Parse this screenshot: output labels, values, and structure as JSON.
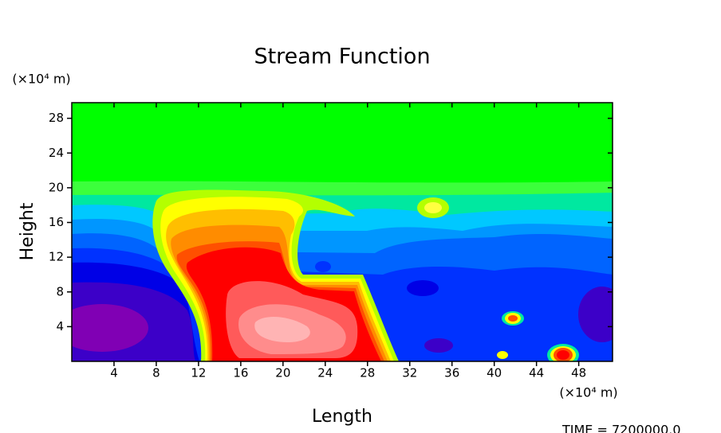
{
  "chart_data": {
    "type": "contour",
    "title": "Stream Function",
    "x_label": "Length",
    "y_label": "Height",
    "x_unit": "(×10⁴ m)",
    "y_unit": "(×10⁴ m)",
    "time_label": "TIME = 7200000.0",
    "xlim": [
      0,
      51.2
    ],
    "ylim": [
      0,
      29.8
    ],
    "xticks": [
      4,
      8,
      12,
      16,
      20,
      24,
      28,
      32,
      36,
      40,
      44,
      48
    ],
    "yticks": [
      4,
      8,
      12,
      16,
      20,
      24,
      28
    ]
  }
}
